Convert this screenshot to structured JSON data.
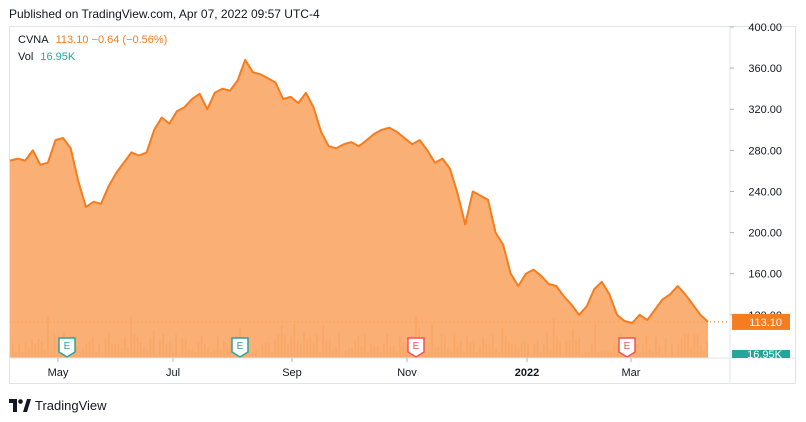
{
  "header": {
    "published": "Published on TradingView.com, Apr 07, 2022 09:57 UTC-4"
  },
  "legend": {
    "symbol": "CVNA",
    "price": "113.10",
    "change": "−0.64 (−0.56%)",
    "vol_label": "Vol",
    "vol_value": "16.95K"
  },
  "footer": {
    "brand": "TradingView"
  },
  "chart_data": {
    "type": "area",
    "series": [
      {
        "values": [
          270,
          272,
          270,
          280,
          266,
          268,
          290,
          292,
          282,
          250,
          225,
          230,
          228,
          245,
          258,
          268,
          278,
          275,
          278,
          300,
          312,
          306,
          318,
          322,
          330,
          335,
          320,
          336,
          340,
          338,
          348,
          368,
          356,
          354,
          350,
          346,
          330,
          332,
          326,
          336,
          322,
          298,
          284,
          282,
          286,
          288,
          284,
          290,
          296,
          300,
          302,
          298,
          292,
          286,
          290,
          280,
          268,
          272,
          262,
          238,
          208,
          240,
          236,
          232,
          200,
          188,
          160,
          148,
          160,
          164,
          158,
          150,
          148,
          138,
          130,
          120,
          128,
          145,
          152,
          140,
          120,
          114,
          112,
          120,
          115,
          125,
          135,
          140,
          148,
          140,
          130,
          120,
          113.1
        ]
      }
    ],
    "y_ticks": [
      "400.00",
      "360.00",
      "320.00",
      "280.00",
      "240.00",
      "200.00",
      "160.00",
      "120.00"
    ],
    "x_ticks": [
      "May",
      "Jul",
      "Sep",
      "Nov",
      "2022",
      "Mar"
    ],
    "ylim": [
      78,
      400
    ],
    "last_price_label": "113.10",
    "volume_label": "16.95K",
    "earnings_markers": [
      "E",
      "E",
      "E",
      "E"
    ],
    "colors": {
      "line": "#f57c1f",
      "fill": "#f9a15c",
      "volume": "#f4c7a5",
      "earnings_green": "#26a69a",
      "earnings_red": "#ef5350",
      "price_badge": "#f57c1f",
      "vol_badge": "#26a69a"
    }
  }
}
